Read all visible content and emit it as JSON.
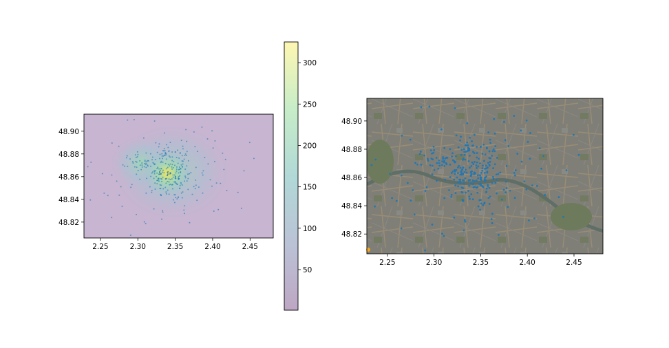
{
  "chart_data": [
    {
      "type": "scatter",
      "title": "",
      "xlabel": "",
      "ylabel": "",
      "xlim": [
        2.228,
        2.481
      ],
      "ylim": [
        48.806,
        48.915
      ],
      "xticks": [
        "2.25",
        "2.30",
        "2.35",
        "2.40",
        "2.45"
      ],
      "yticks": [
        "48.82",
        "48.84",
        "48.86",
        "48.88",
        "48.90"
      ],
      "background": "kernel density heatmap (viridis colormap, semi-transparent)",
      "density_peaks": [
        {
          "x": 2.342,
          "y": 48.866,
          "level": 320
        },
        {
          "x": 2.304,
          "y": 48.872,
          "level": 200
        },
        {
          "x": 2.36,
          "y": 48.855,
          "level": 240
        }
      ],
      "point_color": "#1f77b4",
      "grid": false
    },
    {
      "type": "colorbar",
      "cmap": "viridis",
      "range": [
        1,
        325
      ],
      "ticks": [
        "50",
        "100",
        "150",
        "200",
        "250",
        "300"
      ]
    },
    {
      "type": "scatter",
      "title": "",
      "xlabel": "",
      "ylabel": "",
      "xlim": [
        2.228,
        2.481
      ],
      "ylim": [
        48.806,
        48.916
      ],
      "xticks": [
        "2.25",
        "2.30",
        "2.35",
        "2.40",
        "2.45"
      ],
      "yticks": [
        "48.82",
        "48.84",
        "48.86",
        "48.88",
        "48.90"
      ],
      "background": "satellite basemap of Paris",
      "point_color": "#1f77b4",
      "grid": false
    }
  ]
}
